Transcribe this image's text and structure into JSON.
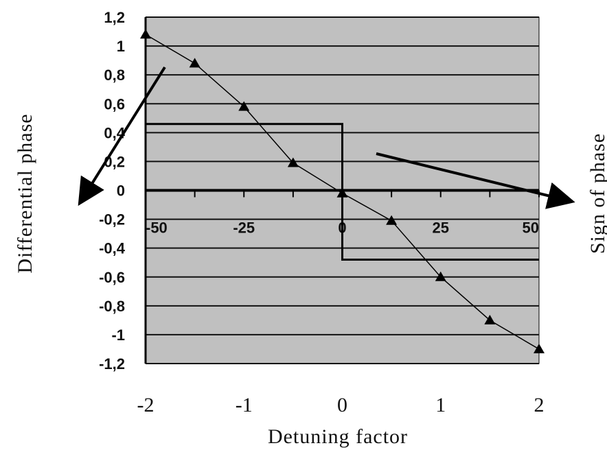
{
  "chart_data": {
    "type": "line",
    "xlabel": "Detuning factor",
    "ylabel": "Differential phase",
    "y2label": "Sign of phase",
    "x_outer_ticks": [
      "-2",
      "-1",
      "0",
      "1",
      "2"
    ],
    "x_outer_values": [
      -2,
      -1,
      0,
      1,
      2
    ],
    "x_inner_ticks": [
      "-50",
      "-25",
      "0",
      "25",
      "50"
    ],
    "x_inner_values": [
      -50,
      -25,
      0,
      25,
      50
    ],
    "y_ticks": [
      "1,2",
      "1",
      "0,8",
      "0,6",
      "0,4",
      "0,2",
      "0",
      "-0,2",
      "-0,4",
      "-0,6",
      "-0,8",
      "-1",
      "-1,2"
    ],
    "y_tick_values": [
      1.2,
      1,
      0.8,
      0.6,
      0.4,
      0.2,
      0,
      -0.2,
      -0.4,
      -0.6,
      -0.8,
      -1,
      -1.2
    ],
    "xlim": [
      -50,
      50
    ],
    "ylim": [
      -1.2,
      1.2
    ],
    "grid": true,
    "series": [
      {
        "marker": "triangle",
        "x": [
          -50,
          -37.5,
          -25,
          -12.5,
          0,
          12.5,
          25,
          37.5,
          50
        ],
        "y": [
          1.08,
          0.88,
          0.58,
          0.19,
          -0.02,
          -0.21,
          -0.6,
          -0.9,
          -1.1
        ]
      },
      {
        "marker": "none",
        "step": true,
        "x": [
          -50,
          0,
          0,
          50
        ],
        "y": [
          0.46,
          0.46,
          -0.48,
          -0.48
        ]
      }
    ],
    "colors": {
      "plot_bg": "#c0c0c0",
      "grid": "#111111",
      "line": "#000000"
    }
  }
}
